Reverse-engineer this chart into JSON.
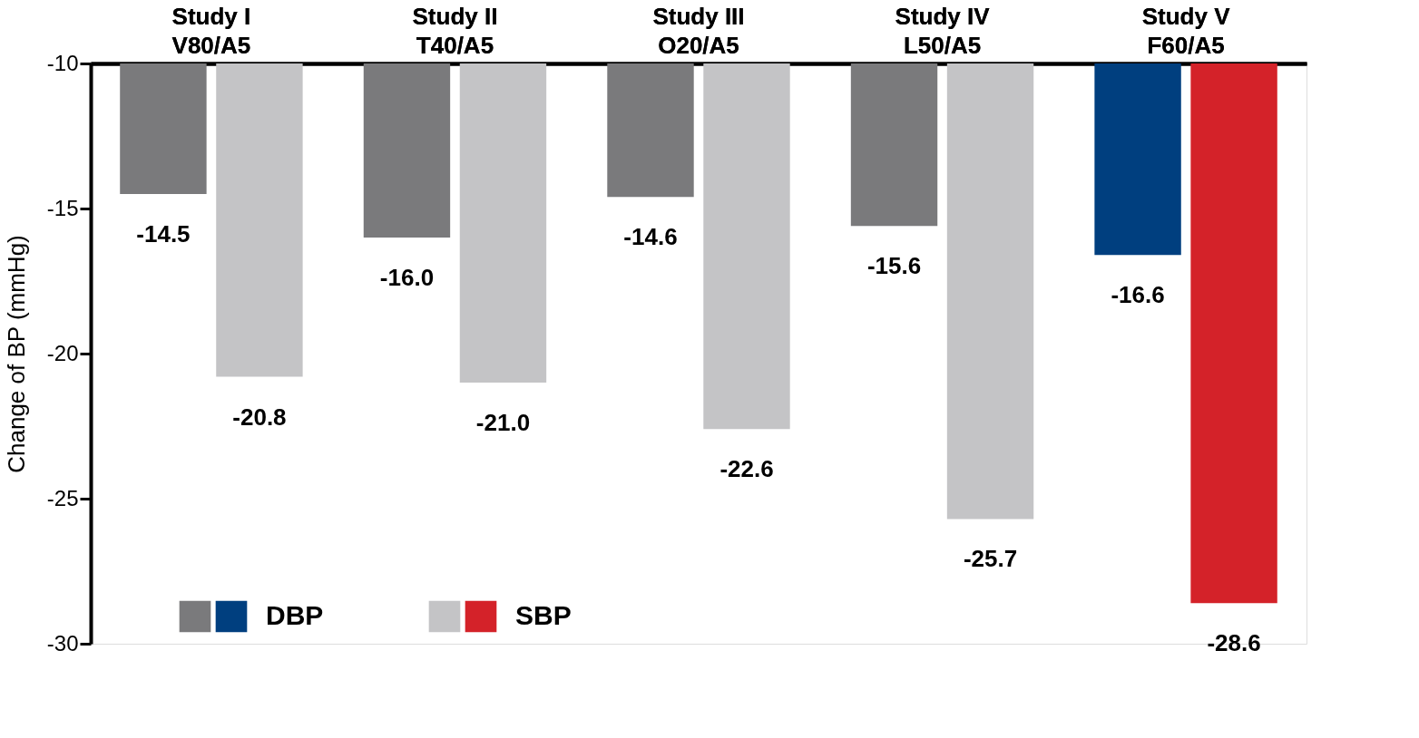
{
  "chart_data": {
    "type": "bar",
    "categories": [
      "Study I\nV80/A5",
      "Study II\nT40/A5",
      "Study III\nO20/A5",
      "Study IV\nL50/A5",
      "Study V\nF60/A5"
    ],
    "series": [
      {
        "name": "DBP",
        "colors": [
          "#7a7a7c",
          "#7a7a7c",
          "#7a7a7c",
          "#7a7a7c",
          "#003f7f"
        ],
        "values": [
          -14.5,
          -16.0,
          -14.6,
          -15.6,
          -16.6
        ],
        "value_labels": [
          "-14.5",
          "-16.0",
          "-14.6",
          "-15.6",
          "-16.6"
        ]
      },
      {
        "name": "SBP",
        "colors": [
          "#c4c4c6",
          "#c4c4c6",
          "#c4c4c6",
          "#c4c4c6",
          "#d42229"
        ],
        "values": [
          -20.8,
          -21.0,
          -22.6,
          -25.7,
          -28.6
        ],
        "value_labels": [
          "-20.8",
          "-21.0",
          "-22.6",
          "-25.7",
          "-28.6"
        ]
      }
    ],
    "ylabel": "Change of BP (mmHg)",
    "ylim": [
      -30,
      -10
    ],
    "yticks": [
      -10,
      -15,
      -20,
      -25,
      -30
    ],
    "grid": false,
    "legend": "bottom left"
  }
}
